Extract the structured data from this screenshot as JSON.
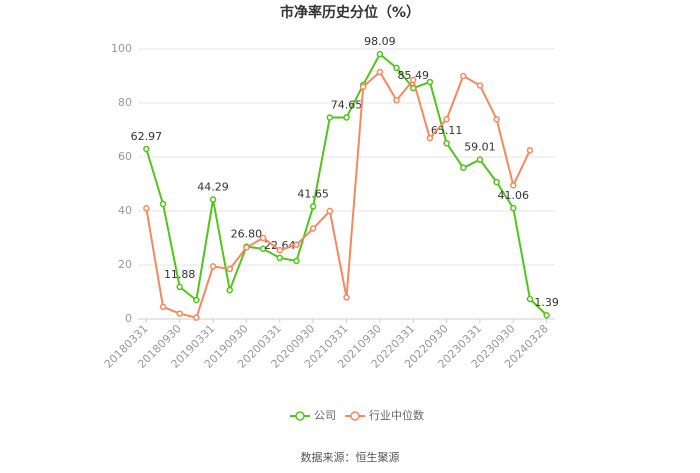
{
  "chart_data": {
    "type": "line",
    "title": "市净率历史分位（%）",
    "categories": [
      "20180331",
      null,
      "20180930",
      null,
      "20190331",
      null,
      "20190930",
      null,
      "20200331",
      null,
      "20200930",
      null,
      "20210331",
      null,
      "20210930",
      null,
      "20220331",
      null,
      "20220930",
      null,
      "20230331",
      null,
      "20230930",
      null,
      "20240328"
    ],
    "series": [
      {
        "name": "公司",
        "color": "#52c41a",
        "values": [
          62.97,
          42.6,
          11.88,
          7,
          44.29,
          10.7,
          26.8,
          26,
          22.64,
          21.5,
          41.65,
          74.65,
          74.65,
          86.7,
          98.09,
          93,
          85.49,
          87.8,
          65.11,
          56,
          59.01,
          50.7,
          41.06,
          7.4,
          1.39
        ],
        "value_labels": [
          "62.97",
          null,
          "11.88",
          null,
          "44.29",
          null,
          "26.80",
          null,
          "22.64",
          null,
          "41.65",
          null,
          "74.65",
          null,
          "98.09",
          null,
          "85.49",
          null,
          "65.11",
          null,
          "59.01",
          null,
          "41.06",
          null,
          "1.39"
        ]
      },
      {
        "name": "行业中位数",
        "color": "#f4895f",
        "values": [
          41,
          4.5,
          2,
          0.5,
          19.5,
          18.5,
          26.5,
          30,
          25.5,
          27.5,
          33.5,
          40,
          8,
          86,
          91.5,
          81,
          88.5,
          67,
          74,
          90,
          86.5,
          74,
          49.5,
          62.5,
          null
        ]
      }
    ],
    "ylim": [
      0,
      100
    ],
    "yticks": [
      0,
      20,
      40,
      60,
      80,
      100
    ],
    "grid": true,
    "source": "数据来源：恒生聚源"
  }
}
